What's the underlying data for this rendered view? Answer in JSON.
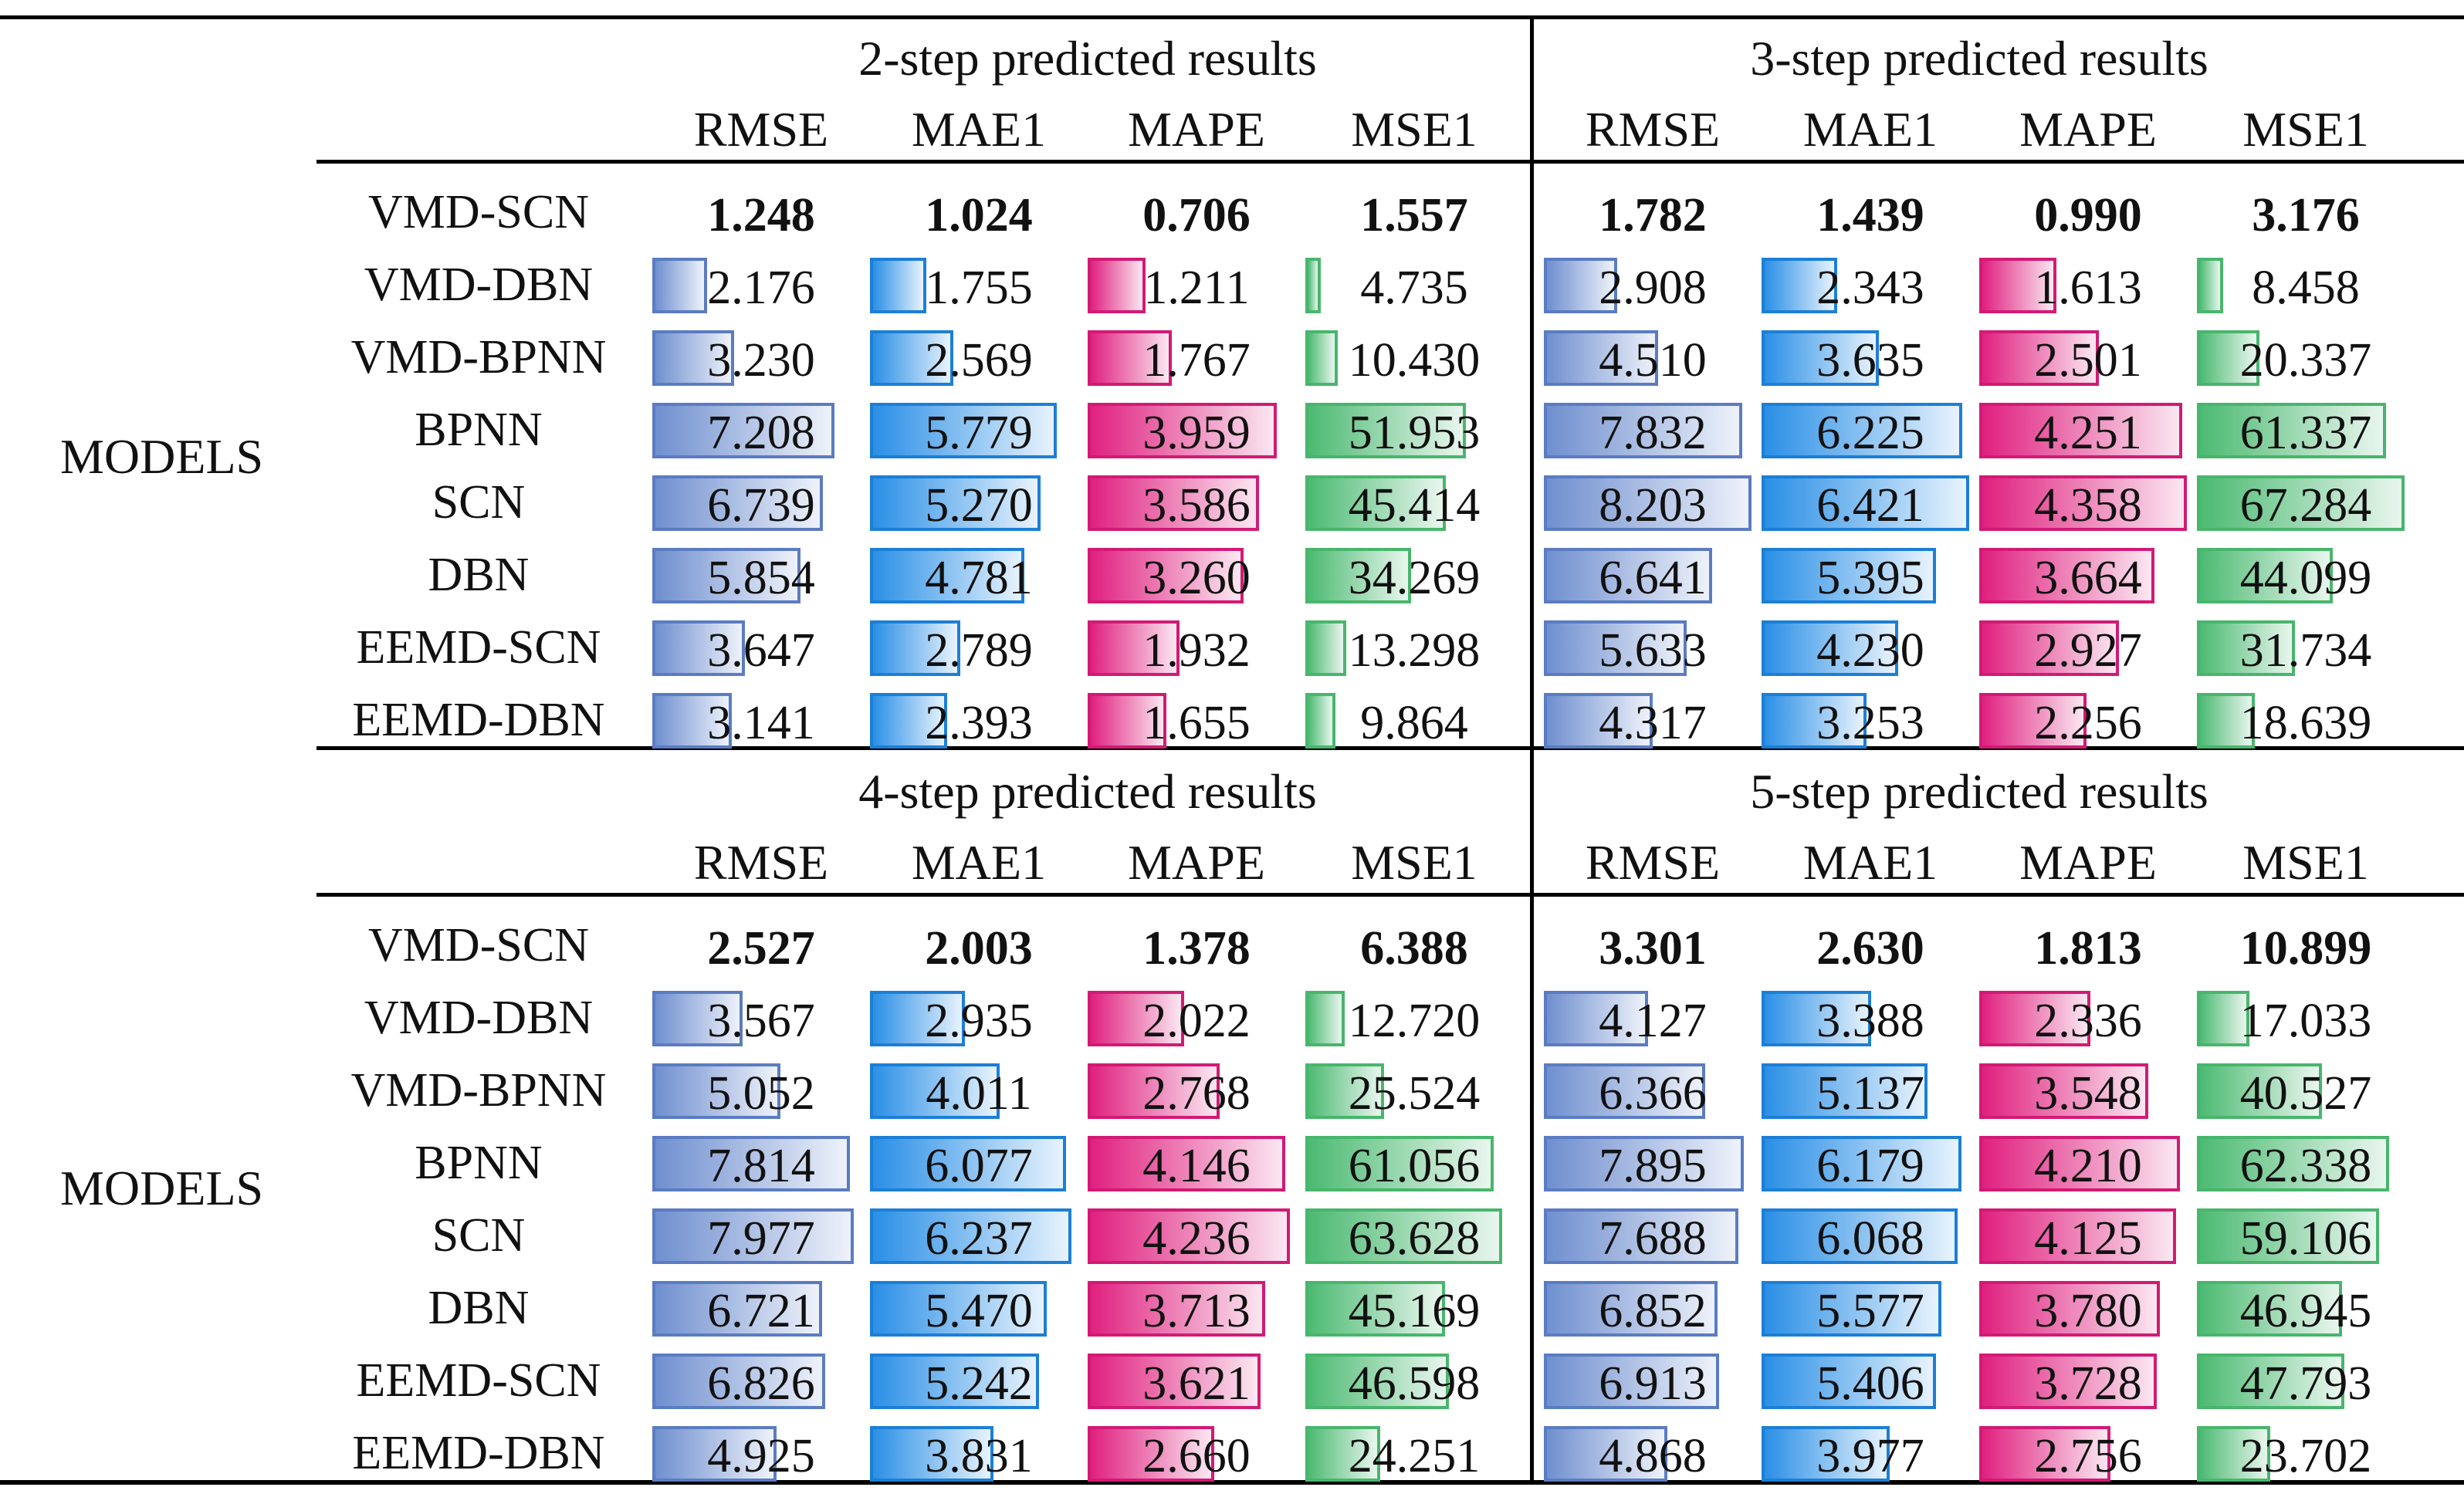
{
  "row_label": "MODELS",
  "metrics": [
    "RMSE",
    "MAE1",
    "MAPE",
    "MSE1"
  ],
  "metric_colors": {
    "RMSE": {
      "border": "#5b7cc2",
      "fill_start": "#6f8fcf",
      "fill_end": "#eef2fa"
    },
    "MAE1": {
      "border": "#1c7fd6",
      "fill_start": "#2a8fe6",
      "fill_end": "#e8f3fd"
    },
    "MAPE": {
      "border": "#d21a75",
      "fill_start": "#e0207f",
      "fill_end": "#fbe7f1"
    },
    "MSE1": {
      "border": "#48b66c",
      "fill_start": "#4cba72",
      "fill_end": "#e9f6ee"
    }
  },
  "models": [
    "VMD-SCN",
    "VMD-DBN",
    "VMD-BPNN",
    "BPNN",
    "SCN",
    "DBN",
    "EEMD-SCN",
    "EEMD-DBN"
  ],
  "panels": [
    {
      "title": "2-step predicted results",
      "rows": [
        [
          "1.248",
          "1.024",
          "0.706",
          "1.557"
        ],
        [
          "2.176",
          "1.755",
          "1.211",
          "4.735"
        ],
        [
          "3.230",
          "2.569",
          "1.767",
          "10.430"
        ],
        [
          "7.208",
          "5.779",
          "3.959",
          "51.953"
        ],
        [
          "6.739",
          "5.270",
          "3.586",
          "45.414"
        ],
        [
          "5.854",
          "4.781",
          "3.260",
          "34.269"
        ],
        [
          "3.647",
          "2.789",
          "1.932",
          "13.298"
        ],
        [
          "3.141",
          "2.393",
          "1.655",
          "9.864"
        ]
      ]
    },
    {
      "title": "3-step predicted results",
      "rows": [
        [
          "1.782",
          "1.439",
          "0.990",
          "3.176"
        ],
        [
          "2.908",
          "2.343",
          "1.613",
          "8.458"
        ],
        [
          "4.510",
          "3.635",
          "2.501",
          "20.337"
        ],
        [
          "7.832",
          "6.225",
          "4.251",
          "61.337"
        ],
        [
          "8.203",
          "6.421",
          "4.358",
          "67.284"
        ],
        [
          "6.641",
          "5.395",
          "3.664",
          "44.099"
        ],
        [
          "5.633",
          "4.230",
          "2.927",
          "31.734"
        ],
        [
          "4.317",
          "3.253",
          "2.256",
          "18.639"
        ]
      ]
    },
    {
      "title": "4-step predicted results",
      "rows": [
        [
          "2.527",
          "2.003",
          "1.378",
          "6.388"
        ],
        [
          "3.567",
          "2.935",
          "2.022",
          "12.720"
        ],
        [
          "5.052",
          "4.011",
          "2.768",
          "25.524"
        ],
        [
          "7.814",
          "6.077",
          "4.146",
          "61.056"
        ],
        [
          "7.977",
          "6.237",
          "4.236",
          "63.628"
        ],
        [
          "6.721",
          "5.470",
          "3.713",
          "45.169"
        ],
        [
          "6.826",
          "5.242",
          "3.621",
          "46.598"
        ],
        [
          "4.925",
          "3.831",
          "2.660",
          "24.251"
        ]
      ]
    },
    {
      "title": "5-step predicted results",
      "rows": [
        [
          "3.301",
          "2.630",
          "1.813",
          "10.899"
        ],
        [
          "4.127",
          "3.388",
          "2.336",
          "17.033"
        ],
        [
          "6.366",
          "5.137",
          "3.548",
          "40.527"
        ],
        [
          "7.895",
          "6.179",
          "4.210",
          "62.338"
        ],
        [
          "7.688",
          "6.068",
          "4.125",
          "59.106"
        ],
        [
          "6.852",
          "5.577",
          "3.780",
          "46.945"
        ],
        [
          "6.913",
          "5.406",
          "3.728",
          "47.793"
        ],
        [
          "4.868",
          "3.977",
          "2.756",
          "23.702"
        ]
      ]
    }
  ],
  "bar_scale_max": {
    "RMSE": 8.3,
    "MAE1": 6.5,
    "MAPE": 4.4,
    "MSE1": 68.0
  },
  "best_model": "VMD-SCN"
}
